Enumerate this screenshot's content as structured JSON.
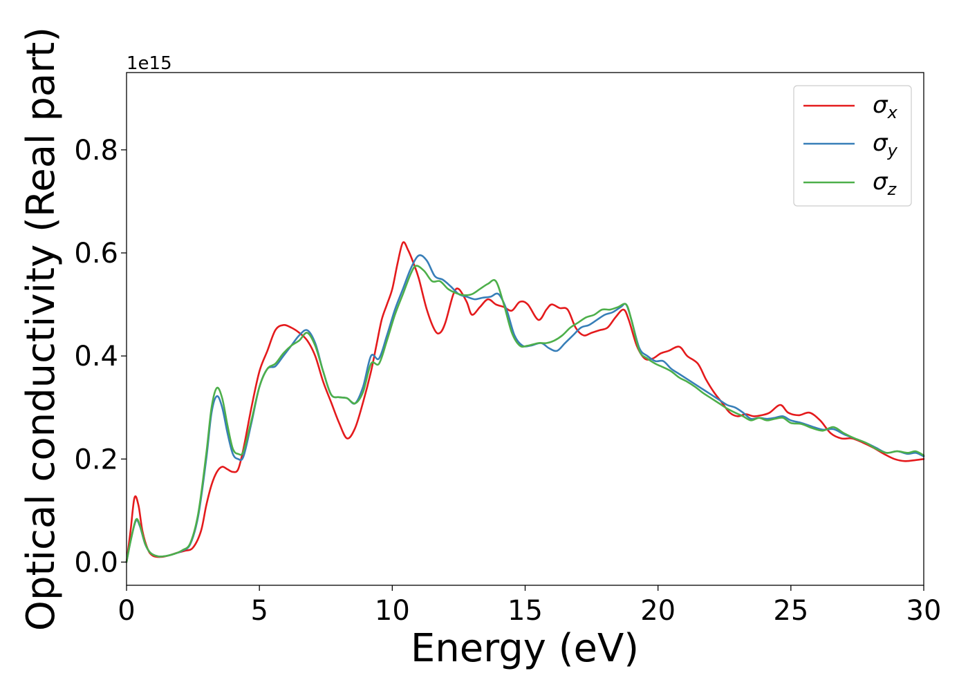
{
  "chart_data": {
    "type": "line",
    "title": "",
    "xlabel": "Energy (eV)",
    "ylabel": "Optical conductivity (Real part)",
    "y_offset_label": "1e15",
    "xlim": [
      0,
      30
    ],
    "ylim": [
      -0.045,
      0.95
    ],
    "x_ticks": [
      "0",
      "5",
      "10",
      "15",
      "20",
      "25",
      "30"
    ],
    "y_ticks": [
      "0.0",
      "0.2",
      "0.4",
      "0.6",
      "0.8"
    ],
    "grid": false,
    "legend_position": "top-right",
    "series": [
      {
        "name": "σx",
        "symbol": "σ",
        "subscript": "x",
        "color": "#e41a1c",
        "points": [
          [
            0,
            0
          ],
          [
            0.15,
            0.06
          ],
          [
            0.3,
            0.125
          ],
          [
            0.45,
            0.11
          ],
          [
            0.6,
            0.06
          ],
          [
            0.8,
            0.025
          ],
          [
            1.0,
            0.012
          ],
          [
            1.3,
            0.01
          ],
          [
            1.6,
            0.013
          ],
          [
            1.9,
            0.018
          ],
          [
            2.2,
            0.022
          ],
          [
            2.5,
            0.028
          ],
          [
            2.8,
            0.06
          ],
          [
            3.0,
            0.11
          ],
          [
            3.2,
            0.15
          ],
          [
            3.4,
            0.175
          ],
          [
            3.6,
            0.185
          ],
          [
            3.8,
            0.18
          ],
          [
            4.0,
            0.175
          ],
          [
            4.2,
            0.18
          ],
          [
            4.4,
            0.22
          ],
          [
            4.7,
            0.3
          ],
          [
            5.0,
            0.37
          ],
          [
            5.3,
            0.41
          ],
          [
            5.6,
            0.45
          ],
          [
            5.9,
            0.46
          ],
          [
            6.2,
            0.455
          ],
          [
            6.5,
            0.445
          ],
          [
            6.8,
            0.43
          ],
          [
            7.1,
            0.4
          ],
          [
            7.4,
            0.35
          ],
          [
            7.7,
            0.31
          ],
          [
            8.0,
            0.27
          ],
          [
            8.3,
            0.24
          ],
          [
            8.6,
            0.26
          ],
          [
            8.9,
            0.31
          ],
          [
            9.2,
            0.37
          ],
          [
            9.4,
            0.42
          ],
          [
            9.6,
            0.47
          ],
          [
            9.8,
            0.5
          ],
          [
            10.0,
            0.53
          ],
          [
            10.2,
            0.58
          ],
          [
            10.4,
            0.62
          ],
          [
            10.6,
            0.605
          ],
          [
            10.8,
            0.58
          ],
          [
            11.0,
            0.55
          ],
          [
            11.3,
            0.49
          ],
          [
            11.6,
            0.45
          ],
          [
            11.8,
            0.445
          ],
          [
            12.0,
            0.465
          ],
          [
            12.3,
            0.52
          ],
          [
            12.5,
            0.53
          ],
          [
            12.8,
            0.505
          ],
          [
            13.0,
            0.48
          ],
          [
            13.3,
            0.495
          ],
          [
            13.6,
            0.51
          ],
          [
            13.9,
            0.5
          ],
          [
            14.2,
            0.495
          ],
          [
            14.5,
            0.488
          ],
          [
            14.8,
            0.505
          ],
          [
            15.1,
            0.5
          ],
          [
            15.5,
            0.47
          ],
          [
            15.8,
            0.49
          ],
          [
            16.0,
            0.5
          ],
          [
            16.3,
            0.493
          ],
          [
            16.6,
            0.49
          ],
          [
            16.9,
            0.455
          ],
          [
            17.2,
            0.44
          ],
          [
            17.5,
            0.445
          ],
          [
            17.8,
            0.45
          ],
          [
            18.1,
            0.455
          ],
          [
            18.4,
            0.475
          ],
          [
            18.7,
            0.49
          ],
          [
            18.9,
            0.47
          ],
          [
            19.2,
            0.42
          ],
          [
            19.5,
            0.395
          ],
          [
            19.8,
            0.395
          ],
          [
            20.1,
            0.405
          ],
          [
            20.4,
            0.41
          ],
          [
            20.8,
            0.418
          ],
          [
            21.1,
            0.4
          ],
          [
            21.5,
            0.385
          ],
          [
            21.8,
            0.355
          ],
          [
            22.1,
            0.33
          ],
          [
            22.4,
            0.31
          ],
          [
            22.7,
            0.29
          ],
          [
            23.0,
            0.283
          ],
          [
            23.3,
            0.287
          ],
          [
            23.6,
            0.283
          ],
          [
            23.9,
            0.285
          ],
          [
            24.2,
            0.29
          ],
          [
            24.6,
            0.305
          ],
          [
            24.9,
            0.29
          ],
          [
            25.3,
            0.285
          ],
          [
            25.7,
            0.29
          ],
          [
            26.1,
            0.275
          ],
          [
            26.5,
            0.25
          ],
          [
            26.9,
            0.24
          ],
          [
            27.3,
            0.24
          ],
          [
            27.7,
            0.232
          ],
          [
            28.1,
            0.222
          ],
          [
            28.5,
            0.21
          ],
          [
            28.9,
            0.2
          ],
          [
            29.3,
            0.196
          ],
          [
            29.7,
            0.198
          ],
          [
            30,
            0.2
          ]
        ]
      },
      {
        "name": "σy",
        "symbol": "σ",
        "subscript": "y",
        "color": "#377eb8",
        "points": [
          [
            0,
            0
          ],
          [
            0.15,
            0.04
          ],
          [
            0.35,
            0.08
          ],
          [
            0.5,
            0.07
          ],
          [
            0.7,
            0.035
          ],
          [
            0.9,
            0.018
          ],
          [
            1.2,
            0.011
          ],
          [
            1.5,
            0.012
          ],
          [
            1.8,
            0.016
          ],
          [
            2.1,
            0.022
          ],
          [
            2.4,
            0.035
          ],
          [
            2.7,
            0.09
          ],
          [
            3.0,
            0.2
          ],
          [
            3.2,
            0.29
          ],
          [
            3.4,
            0.322
          ],
          [
            3.6,
            0.3
          ],
          [
            3.8,
            0.25
          ],
          [
            4.0,
            0.21
          ],
          [
            4.2,
            0.2
          ],
          [
            4.4,
            0.205
          ],
          [
            4.7,
            0.27
          ],
          [
            5.0,
            0.34
          ],
          [
            5.3,
            0.375
          ],
          [
            5.6,
            0.38
          ],
          [
            5.9,
            0.4
          ],
          [
            6.2,
            0.42
          ],
          [
            6.5,
            0.44
          ],
          [
            6.8,
            0.45
          ],
          [
            7.1,
            0.425
          ],
          [
            7.4,
            0.37
          ],
          [
            7.7,
            0.325
          ],
          [
            8.0,
            0.32
          ],
          [
            8.3,
            0.318
          ],
          [
            8.6,
            0.308
          ],
          [
            8.9,
            0.34
          ],
          [
            9.2,
            0.4
          ],
          [
            9.5,
            0.395
          ],
          [
            9.8,
            0.44
          ],
          [
            10.1,
            0.49
          ],
          [
            10.4,
            0.53
          ],
          [
            10.7,
            0.57
          ],
          [
            11.0,
            0.595
          ],
          [
            11.3,
            0.585
          ],
          [
            11.6,
            0.555
          ],
          [
            11.9,
            0.548
          ],
          [
            12.2,
            0.535
          ],
          [
            12.5,
            0.52
          ],
          [
            12.8,
            0.515
          ],
          [
            13.1,
            0.51
          ],
          [
            13.4,
            0.513
          ],
          [
            13.7,
            0.515
          ],
          [
            14.0,
            0.52
          ],
          [
            14.3,
            0.49
          ],
          [
            14.6,
            0.44
          ],
          [
            14.9,
            0.42
          ],
          [
            15.2,
            0.42
          ],
          [
            15.6,
            0.425
          ],
          [
            15.9,
            0.415
          ],
          [
            16.2,
            0.41
          ],
          [
            16.5,
            0.425
          ],
          [
            16.8,
            0.44
          ],
          [
            17.1,
            0.455
          ],
          [
            17.4,
            0.46
          ],
          [
            17.7,
            0.47
          ],
          [
            18.0,
            0.48
          ],
          [
            18.3,
            0.485
          ],
          [
            18.6,
            0.495
          ],
          [
            18.8,
            0.5
          ],
          [
            19.0,
            0.47
          ],
          [
            19.3,
            0.415
          ],
          [
            19.6,
            0.4
          ],
          [
            19.9,
            0.39
          ],
          [
            20.2,
            0.39
          ],
          [
            20.5,
            0.375
          ],
          [
            20.8,
            0.365
          ],
          [
            21.1,
            0.355
          ],
          [
            21.4,
            0.345
          ],
          [
            21.7,
            0.335
          ],
          [
            22.0,
            0.325
          ],
          [
            22.3,
            0.315
          ],
          [
            22.6,
            0.305
          ],
          [
            22.9,
            0.3
          ],
          [
            23.2,
            0.29
          ],
          [
            23.5,
            0.278
          ],
          [
            23.8,
            0.28
          ],
          [
            24.1,
            0.278
          ],
          [
            24.4,
            0.28
          ],
          [
            24.7,
            0.283
          ],
          [
            25.0,
            0.275
          ],
          [
            25.4,
            0.27
          ],
          [
            25.8,
            0.263
          ],
          [
            26.2,
            0.257
          ],
          [
            26.6,
            0.258
          ],
          [
            27.0,
            0.248
          ],
          [
            27.4,
            0.24
          ],
          [
            27.8,
            0.232
          ],
          [
            28.2,
            0.222
          ],
          [
            28.6,
            0.212
          ],
          [
            29.0,
            0.215
          ],
          [
            29.4,
            0.21
          ],
          [
            29.7,
            0.212
          ],
          [
            30,
            0.205
          ]
        ]
      },
      {
        "name": "σz",
        "symbol": "σ",
        "subscript": "z",
        "color": "#4daf4a",
        "points": [
          [
            0,
            0
          ],
          [
            0.15,
            0.04
          ],
          [
            0.35,
            0.082
          ],
          [
            0.5,
            0.072
          ],
          [
            0.7,
            0.036
          ],
          [
            0.9,
            0.018
          ],
          [
            1.2,
            0.011
          ],
          [
            1.5,
            0.012
          ],
          [
            1.8,
            0.016
          ],
          [
            2.1,
            0.023
          ],
          [
            2.4,
            0.037
          ],
          [
            2.7,
            0.095
          ],
          [
            3.0,
            0.21
          ],
          [
            3.2,
            0.3
          ],
          [
            3.4,
            0.338
          ],
          [
            3.6,
            0.318
          ],
          [
            3.8,
            0.265
          ],
          [
            4.0,
            0.22
          ],
          [
            4.2,
            0.21
          ],
          [
            4.4,
            0.215
          ],
          [
            4.7,
            0.275
          ],
          [
            5.0,
            0.34
          ],
          [
            5.3,
            0.375
          ],
          [
            5.6,
            0.385
          ],
          [
            5.9,
            0.405
          ],
          [
            6.2,
            0.42
          ],
          [
            6.5,
            0.43
          ],
          [
            6.8,
            0.445
          ],
          [
            7.1,
            0.42
          ],
          [
            7.4,
            0.37
          ],
          [
            7.7,
            0.325
          ],
          [
            8.0,
            0.32
          ],
          [
            8.3,
            0.318
          ],
          [
            8.6,
            0.308
          ],
          [
            8.9,
            0.33
          ],
          [
            9.2,
            0.385
          ],
          [
            9.5,
            0.385
          ],
          [
            9.8,
            0.43
          ],
          [
            10.1,
            0.48
          ],
          [
            10.4,
            0.52
          ],
          [
            10.7,
            0.56
          ],
          [
            10.9,
            0.575
          ],
          [
            11.2,
            0.565
          ],
          [
            11.5,
            0.545
          ],
          [
            11.8,
            0.545
          ],
          [
            12.1,
            0.53
          ],
          [
            12.4,
            0.522
          ],
          [
            12.7,
            0.518
          ],
          [
            13.0,
            0.52
          ],
          [
            13.3,
            0.53
          ],
          [
            13.6,
            0.54
          ],
          [
            13.9,
            0.545
          ],
          [
            14.2,
            0.5
          ],
          [
            14.5,
            0.445
          ],
          [
            14.8,
            0.42
          ],
          [
            15.1,
            0.42
          ],
          [
            15.5,
            0.425
          ],
          [
            15.8,
            0.425
          ],
          [
            16.1,
            0.43
          ],
          [
            16.4,
            0.44
          ],
          [
            16.7,
            0.455
          ],
          [
            17.0,
            0.465
          ],
          [
            17.3,
            0.475
          ],
          [
            17.6,
            0.48
          ],
          [
            17.9,
            0.49
          ],
          [
            18.2,
            0.49
          ],
          [
            18.5,
            0.495
          ],
          [
            18.8,
            0.5
          ],
          [
            19.0,
            0.47
          ],
          [
            19.3,
            0.41
          ],
          [
            19.6,
            0.395
          ],
          [
            19.9,
            0.385
          ],
          [
            20.2,
            0.378
          ],
          [
            20.5,
            0.37
          ],
          [
            20.8,
            0.358
          ],
          [
            21.1,
            0.35
          ],
          [
            21.4,
            0.34
          ],
          [
            21.7,
            0.328
          ],
          [
            22.0,
            0.318
          ],
          [
            22.3,
            0.308
          ],
          [
            22.6,
            0.298
          ],
          [
            22.9,
            0.29
          ],
          [
            23.2,
            0.283
          ],
          [
            23.5,
            0.275
          ],
          [
            23.8,
            0.28
          ],
          [
            24.1,
            0.275
          ],
          [
            24.4,
            0.278
          ],
          [
            24.7,
            0.28
          ],
          [
            25.0,
            0.27
          ],
          [
            25.4,
            0.268
          ],
          [
            25.8,
            0.26
          ],
          [
            26.2,
            0.255
          ],
          [
            26.6,
            0.262
          ],
          [
            27.0,
            0.25
          ],
          [
            27.4,
            0.24
          ],
          [
            27.8,
            0.232
          ],
          [
            28.2,
            0.22
          ],
          [
            28.6,
            0.212
          ],
          [
            29.0,
            0.215
          ],
          [
            29.4,
            0.212
          ],
          [
            29.7,
            0.215
          ],
          [
            30,
            0.207
          ]
        ]
      }
    ]
  }
}
